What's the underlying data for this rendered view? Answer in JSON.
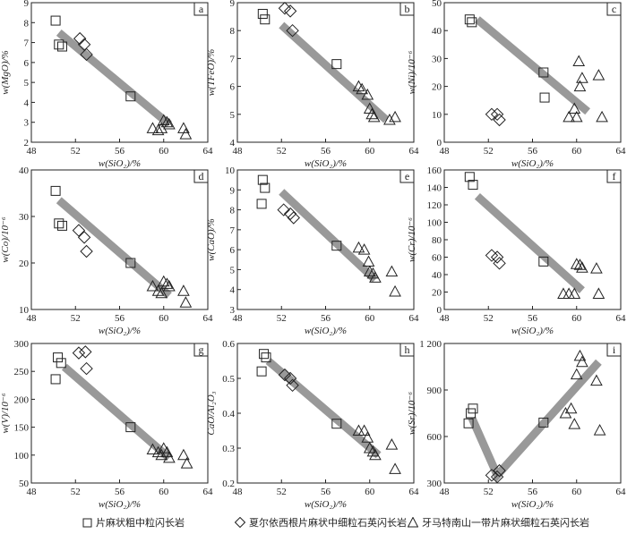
{
  "legend": {
    "items": [
      {
        "marker": "square",
        "label": "片麻状粗中粒闪长岩"
      },
      {
        "marker": "diamond",
        "label": "夏尔依西根片麻状中细粒石英闪长岩"
      },
      {
        "marker": "triangle",
        "label": "牙马特南山一带片麻状细粒石英闪长岩"
      }
    ]
  },
  "chart_data": [
    {
      "type": "scatter",
      "panel_label": "a",
      "xlabel": "w(SiO₂)/%",
      "ylabel": "w(MgO)/%",
      "xlim": [
        48,
        64
      ],
      "ylim": [
        2,
        9
      ],
      "xticks": [
        "48",
        "52",
        "56",
        "60",
        "64"
      ],
      "yticks": [
        "2",
        "3",
        "4",
        "5",
        "6",
        "7",
        "8",
        "9"
      ],
      "series": [
        {
          "name": "片麻状粗中粒闪长岩",
          "marker": "square",
          "points": [
            [
              50.2,
              8.1
            ],
            [
              50.5,
              6.9
            ],
            [
              50.8,
              6.8
            ],
            [
              57.0,
              4.3
            ]
          ]
        },
        {
          "name": "夏尔依西根片麻状中细粒石英闪长岩",
          "marker": "diamond",
          "points": [
            [
              52.4,
              7.2
            ],
            [
              52.8,
              6.9
            ],
            [
              53.0,
              6.4
            ]
          ]
        },
        {
          "name": "牙马特南山一带片麻状细粒石英闪长岩",
          "marker": "triangle",
          "points": [
            [
              59.0,
              2.7
            ],
            [
              59.5,
              2.6
            ],
            [
              59.8,
              2.7
            ],
            [
              60.0,
              3.1
            ],
            [
              60.3,
              3.0
            ],
            [
              60.5,
              2.9
            ],
            [
              61.8,
              2.7
            ],
            [
              62.0,
              2.4
            ]
          ]
        }
      ],
      "trend": [
        [
          50.5,
          7.5
        ],
        [
          60.5,
          2.9
        ]
      ]
    },
    {
      "type": "scatter",
      "panel_label": "b",
      "xlabel": "w(SiO₂)/%",
      "ylabel": "w(TFeO)/%",
      "xlim": [
        48,
        64
      ],
      "ylim": [
        4,
        9
      ],
      "xticks": [
        "48",
        "52",
        "56",
        "60",
        "64"
      ],
      "yticks": [
        "4",
        "5",
        "6",
        "7",
        "8",
        "9"
      ],
      "series": [
        {
          "name": "片麻状粗中粒闪长岩",
          "marker": "square",
          "points": [
            [
              50.3,
              8.6
            ],
            [
              50.5,
              8.4
            ],
            [
              57.0,
              6.8
            ]
          ]
        },
        {
          "name": "夏尔依西根片麻状中细粒石英闪长岩",
          "marker": "diamond",
          "points": [
            [
              52.3,
              8.8
            ],
            [
              52.8,
              8.7
            ],
            [
              53.0,
              8.0
            ]
          ]
        },
        {
          "name": "牙马特南山一带片麻状细粒石英闪长岩",
          "marker": "triangle",
          "points": [
            [
              59.0,
              6.0
            ],
            [
              59.3,
              5.9
            ],
            [
              59.8,
              5.7
            ],
            [
              60.0,
              5.2
            ],
            [
              60.2,
              5.0
            ],
            [
              60.4,
              4.9
            ],
            [
              61.8,
              4.8
            ],
            [
              62.3,
              4.9
            ]
          ]
        }
      ],
      "trend": [
        [
          52.0,
          8.2
        ],
        [
          61.5,
          4.8
        ]
      ]
    },
    {
      "type": "scatter",
      "panel_label": "c",
      "xlabel": "w(SiO₂)/%",
      "ylabel": "w(Ni)/10⁻⁶",
      "xlim": [
        48,
        64
      ],
      "ylim": [
        0,
        50
      ],
      "xticks": [
        "48",
        "52",
        "56",
        "60",
        "64"
      ],
      "yticks": [
        "0",
        "10",
        "20",
        "30",
        "40",
        "50"
      ],
      "series": [
        {
          "name": "片麻状粗中粒闪长岩",
          "marker": "square",
          "points": [
            [
              50.3,
              44.0
            ],
            [
              50.5,
              43.0
            ],
            [
              57.0,
              25.0
            ],
            [
              57.1,
              16.0
            ]
          ]
        },
        {
          "name": "夏尔依西根片麻状中细粒石英闪长岩",
          "marker": "diamond",
          "points": [
            [
              52.3,
              10.0
            ],
            [
              52.8,
              10.0
            ],
            [
              53.0,
              8.0
            ]
          ]
        },
        {
          "name": "牙马特南山一带片麻状细粒石英闪长岩",
          "marker": "triangle",
          "points": [
            [
              59.3,
              9.0
            ],
            [
              59.8,
              12.0
            ],
            [
              60.0,
              9.0
            ],
            [
              60.2,
              29.0
            ],
            [
              60.3,
              20.0
            ],
            [
              60.5,
              23.0
            ],
            [
              62.0,
              24.0
            ],
            [
              62.3,
              9.0
            ]
          ]
        }
      ],
      "trend": [
        [
          51.0,
          44.0
        ],
        [
          61.0,
          11.0
        ]
      ]
    },
    {
      "type": "scatter",
      "panel_label": "d",
      "xlabel": "w(SiO₂)/%",
      "ylabel": "w(Co)/10⁻⁶",
      "xlim": [
        48,
        64
      ],
      "ylim": [
        10,
        40
      ],
      "xticks": [
        "48",
        "52",
        "56",
        "60",
        "64"
      ],
      "yticks": [
        "10",
        "20",
        "30",
        "40"
      ],
      "series": [
        {
          "name": "片麻状粗中粒闪长岩",
          "marker": "square",
          "points": [
            [
              50.2,
              35.5
            ],
            [
              50.5,
              28.5
            ],
            [
              50.8,
              28.0
            ],
            [
              57.0,
              20.0
            ]
          ]
        },
        {
          "name": "夏尔依西根片麻状中细粒石英闪长岩",
          "marker": "diamond",
          "points": [
            [
              52.3,
              27.0
            ],
            [
              52.8,
              25.5
            ],
            [
              53.0,
              22.5
            ]
          ]
        },
        {
          "name": "牙马特南山一带片麻状细粒石英闪长岩",
          "marker": "triangle",
          "points": [
            [
              59.0,
              15.0
            ],
            [
              59.5,
              14.0
            ],
            [
              59.8,
              13.5
            ],
            [
              60.0,
              16.0
            ],
            [
              60.3,
              15.5
            ],
            [
              60.5,
              15.0
            ],
            [
              61.8,
              14.0
            ],
            [
              62.0,
              11.5
            ]
          ]
        }
      ],
      "trend": [
        [
          50.5,
          33.5
        ],
        [
          60.5,
          13.0
        ]
      ]
    },
    {
      "type": "scatter",
      "panel_label": "e",
      "xlabel": "w(SiO₂)/%",
      "ylabel": "w(CaO)/%",
      "xlim": [
        48,
        64
      ],
      "ylim": [
        3,
        10
      ],
      "xticks": [
        "48",
        "52",
        "56",
        "60",
        "64"
      ],
      "yticks": [
        "3",
        "4",
        "5",
        "6",
        "7",
        "8",
        "9",
        "10"
      ],
      "series": [
        {
          "name": "片麻状粗中粒闪长岩",
          "marker": "square",
          "points": [
            [
              50.2,
              8.3
            ],
            [
              50.3,
              9.5
            ],
            [
              50.5,
              9.1
            ],
            [
              57.0,
              6.2
            ]
          ]
        },
        {
          "name": "夏尔依西根片麻状中细粒石英闪长岩",
          "marker": "diamond",
          "points": [
            [
              52.2,
              8.0
            ],
            [
              52.8,
              7.8
            ],
            [
              53.1,
              7.6
            ]
          ]
        },
        {
          "name": "牙马特南山一带片麻状细粒石英闪长岩",
          "marker": "triangle",
          "points": [
            [
              59.0,
              6.1
            ],
            [
              59.5,
              6.0
            ],
            [
              59.9,
              5.4
            ],
            [
              60.0,
              4.9
            ],
            [
              60.3,
              4.8
            ],
            [
              60.5,
              4.6
            ],
            [
              62.0,
              4.9
            ],
            [
              62.3,
              3.9
            ]
          ]
        }
      ],
      "trend": [
        [
          52.0,
          8.9
        ],
        [
          60.5,
          4.5
        ]
      ]
    },
    {
      "type": "scatter",
      "panel_label": "f",
      "xlabel": "w(SiO₂)/%",
      "ylabel": "w(Cr)/10⁻⁶",
      "xlim": [
        48,
        64
      ],
      "ylim": [
        0,
        160
      ],
      "xticks": [
        "48",
        "52",
        "56",
        "60",
        "64"
      ],
      "yticks": [
        "0",
        "20",
        "40",
        "60",
        "80",
        "100",
        "120",
        "140",
        "160"
      ],
      "series": [
        {
          "name": "片麻状粗中粒闪长岩",
          "marker": "square",
          "points": [
            [
              50.3,
              152.0
            ],
            [
              50.6,
              143.0
            ],
            [
              57.0,
              55.0
            ]
          ]
        },
        {
          "name": "夏尔依西根片麻状中细粒石英闪长岩",
          "marker": "diamond",
          "points": [
            [
              52.3,
              62.0
            ],
            [
              52.8,
              60.0
            ],
            [
              53.0,
              53.0
            ]
          ]
        },
        {
          "name": "牙马特南山一带片麻状细粒石英闪长岩",
          "marker": "triangle",
          "points": [
            [
              58.8,
              18.0
            ],
            [
              59.3,
              18.0
            ],
            [
              59.8,
              18.0
            ],
            [
              60.0,
              52.0
            ],
            [
              60.3,
              51.0
            ],
            [
              60.5,
              48.0
            ],
            [
              61.8,
              47.0
            ],
            [
              62.0,
              18.0
            ]
          ]
        }
      ],
      "trend": [
        [
          51.0,
          130.0
        ],
        [
          60.5,
          22.0
        ]
      ]
    },
    {
      "type": "scatter",
      "panel_label": "g",
      "xlabel": "w(SiO₂)/%",
      "ylabel": "w(V)/10⁻⁶",
      "xlim": [
        48,
        64
      ],
      "ylim": [
        50,
        300
      ],
      "xticks": [
        "48",
        "52",
        "56",
        "60",
        "64"
      ],
      "yticks": [
        "50",
        "100",
        "150",
        "200",
        "250",
        "300"
      ],
      "series": [
        {
          "name": "片麻状粗中粒闪长岩",
          "marker": "square",
          "points": [
            [
              50.2,
              236.0
            ],
            [
              50.4,
              275.0
            ],
            [
              50.7,
              265.0
            ],
            [
              57.0,
              150.0
            ]
          ]
        },
        {
          "name": "夏尔依西根片麻状中细粒石英闪长岩",
          "marker": "diamond",
          "points": [
            [
              52.3,
              283.0
            ],
            [
              52.9,
              285.0
            ],
            [
              53.0,
              255.0
            ]
          ]
        },
        {
          "name": "牙马特南山一带片麻状细粒石英闪长岩",
          "marker": "triangle",
          "points": [
            [
              59.0,
              110.0
            ],
            [
              59.5,
              105.0
            ],
            [
              59.8,
              100.0
            ],
            [
              60.0,
              112.0
            ],
            [
              60.3,
              105.0
            ],
            [
              60.5,
              95.0
            ],
            [
              61.8,
              100.0
            ],
            [
              62.1,
              85.0
            ]
          ]
        }
      ],
      "trend": [
        [
          51.0,
          258.0
        ],
        [
          60.5,
          95.0
        ]
      ]
    },
    {
      "type": "scatter",
      "panel_label": "h",
      "xlabel": "w(SiO₂)/%",
      "ylabel": "CaO/Al₂O₃",
      "xlim": [
        48,
        64
      ],
      "ylim": [
        0.2,
        0.6
      ],
      "xticks": [
        "48",
        "52",
        "56",
        "60",
        "64"
      ],
      "yticks": [
        "0.2",
        "0.3",
        "0.4",
        "0.5",
        "0.6"
      ],
      "series": [
        {
          "name": "片麻状粗中粒闪长岩",
          "marker": "square",
          "points": [
            [
              50.2,
              0.52
            ],
            [
              50.4,
              0.57
            ],
            [
              50.6,
              0.56
            ],
            [
              57.0,
              0.37
            ]
          ]
        },
        {
          "name": "夏尔依西根片麻状中细粒石英闪长岩",
          "marker": "diamond",
          "points": [
            [
              52.3,
              0.51
            ],
            [
              52.8,
              0.5
            ],
            [
              53.0,
              0.48
            ]
          ]
        },
        {
          "name": "牙马特南山一带片麻状细粒石英闪长岩",
          "marker": "triangle",
          "points": [
            [
              59.0,
              0.35
            ],
            [
              59.5,
              0.35
            ],
            [
              59.8,
              0.33
            ],
            [
              60.0,
              0.3
            ],
            [
              60.3,
              0.29
            ],
            [
              60.5,
              0.28
            ],
            [
              62.0,
              0.31
            ],
            [
              62.3,
              0.24
            ]
          ]
        }
      ],
      "trend": [
        [
          50.8,
          0.55
        ],
        [
          60.8,
          0.28
        ]
      ]
    },
    {
      "type": "scatter",
      "panel_label": "i",
      "xlabel": "w(SiO₂)/%",
      "ylabel": "w(Sr)/10⁻⁶",
      "xlim": [
        48,
        64
      ],
      "ylim": [
        300,
        1200
      ],
      "xticks": [
        "48",
        "52",
        "56",
        "60",
        "64"
      ],
      "yticks": [
        "300",
        "600",
        "900",
        "1 200"
      ],
      "series": [
        {
          "name": "片麻状粗中粒闪长岩",
          "marker": "square",
          "points": [
            [
              50.2,
              685.0
            ],
            [
              50.4,
              750.0
            ],
            [
              50.6,
              780.0
            ],
            [
              57.0,
              690.0
            ]
          ]
        },
        {
          "name": "夏尔依西根片麻状中细粒石英闪长岩",
          "marker": "diamond",
          "points": [
            [
              52.3,
              350.0
            ],
            [
              52.8,
              340.0
            ],
            [
              53.0,
              380.0
            ]
          ]
        },
        {
          "name": "牙马特南山一带片麻状细粒石英闪长岩",
          "marker": "triangle",
          "points": [
            [
              59.0,
              750.0
            ],
            [
              59.5,
              780.0
            ],
            [
              59.8,
              680.0
            ],
            [
              60.0,
              1000.0
            ],
            [
              60.3,
              1120.0
            ],
            [
              60.5,
              1080.0
            ],
            [
              61.8,
              960.0
            ],
            [
              62.1,
              640.0
            ]
          ]
        }
      ],
      "trend": [
        [
          50.5,
          720.0
        ],
        [
          52.8,
          350.0
        ],
        [
          62.0,
          1080.0
        ]
      ]
    }
  ]
}
